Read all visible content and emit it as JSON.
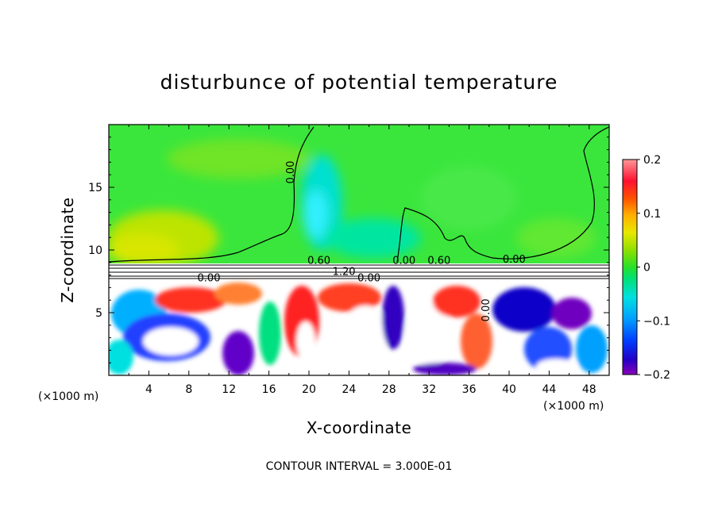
{
  "chart_data": {
    "type": "heatmap",
    "title": "disturbunce of potential temperature",
    "xlabel": "X-coordinate",
    "ylabel": "Z-coordinate",
    "x_unit": "(×1000 m)",
    "y_unit": "(×1000 m)",
    "xlim": [
      0,
      50
    ],
    "ylim": [
      0,
      20
    ],
    "x_ticks": [
      4,
      8,
      12,
      16,
      20,
      24,
      28,
      32,
      36,
      40,
      44,
      48
    ],
    "y_ticks": [
      5,
      10,
      15
    ],
    "colorbar": {
      "range": [
        -0.2,
        0.2
      ],
      "tick_values": [
        0.2,
        0.1,
        0,
        -0.1,
        -0.2
      ],
      "tick_labels": [
        "0.2",
        "0.1",
        "0",
        "−0.1",
        "−0.2"
      ]
    },
    "contour_labels": [
      {
        "text": "0.00",
        "x": 18.5,
        "z": 16.2,
        "rotation": -90
      },
      {
        "text": "0.00",
        "x": 10,
        "z": 7.5
      },
      {
        "text": "0.60",
        "x": 21,
        "z": 8.9
      },
      {
        "text": "0.00",
        "x": 29.5,
        "z": 8.9
      },
      {
        "text": "0.60",
        "x": 33,
        "z": 8.9
      },
      {
        "text": "0.00",
        "x": 40.5,
        "z": 9.0
      },
      {
        "text": "1.20",
        "x": 23.5,
        "z": 8.0
      },
      {
        "text": "0.00",
        "x": 26,
        "z": 7.5
      },
      {
        "text": "0.00",
        "x": 38,
        "z": 5.2,
        "rotation": -90
      }
    ],
    "footer": "CONTOUR INTERVAL = 3.000E-01"
  }
}
